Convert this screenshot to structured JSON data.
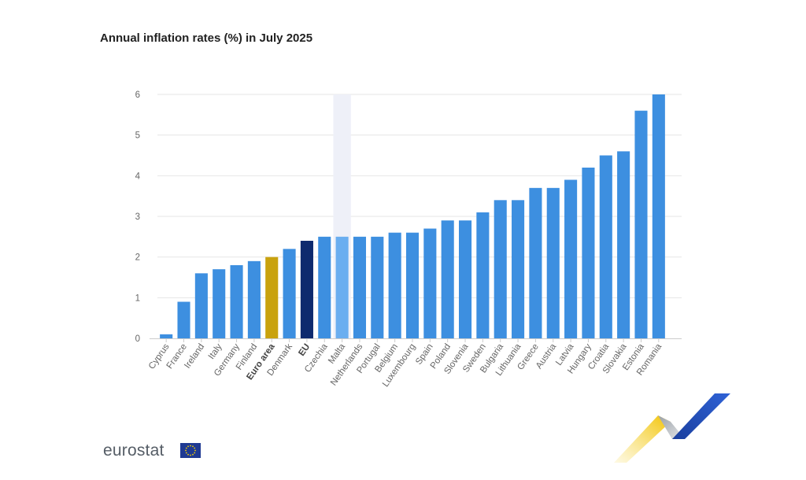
{
  "chart_data": {
    "type": "bar",
    "title": "Annual inflation rates (%) in July 2025",
    "xlabel": "",
    "ylabel": "",
    "ylim": [
      0,
      6
    ],
    "yticks": [
      0,
      1,
      2,
      3,
      4,
      5,
      6
    ],
    "grid": true,
    "legend": "none",
    "categories": [
      "Cyprus",
      "France",
      "Ireland",
      "Italy",
      "Germany",
      "Finland",
      "Euro area",
      "Denmark",
      "EU",
      "Czechia",
      "Malta",
      "Netherlands",
      "Portugal",
      "Belgium",
      "Luxembourg",
      "Spain",
      "Poland",
      "Slovenia",
      "Sweden",
      "Bulgaria",
      "Lithuania",
      "Greece",
      "Austria",
      "Latvia",
      "Hungary",
      "Croatia",
      "Slovakia",
      "Estonia",
      "Romania"
    ],
    "values": [
      0.1,
      0.9,
      1.6,
      1.7,
      1.8,
      1.9,
      2.0,
      2.2,
      2.4,
      2.5,
      2.5,
      2.5,
      2.5,
      2.6,
      2.6,
      2.7,
      2.9,
      2.9,
      3.1,
      3.4,
      3.4,
      3.7,
      3.7,
      3.9,
      4.2,
      4.5,
      4.6,
      5.6,
      6.0
    ],
    "highlighted_category": "Malta",
    "bold_categories": [
      "Euro area",
      "EU"
    ],
    "colors": {
      "default": "#3d8fe0",
      "Euro area": "#c9a20e",
      "EU": "#0e2a6e",
      "Malta": "#6aaef0",
      "highlight_band": "#eef0f8",
      "grid": "#e6e6e6",
      "axis": "#cccccc"
    }
  },
  "branding": {
    "logo_text": "eurostat",
    "flag_icon": "eu-flag-icon",
    "flag_color": "#1f3a93",
    "flag_star_color": "#f5d000",
    "swoosh_icon": "eurostat-swoosh-icon"
  }
}
